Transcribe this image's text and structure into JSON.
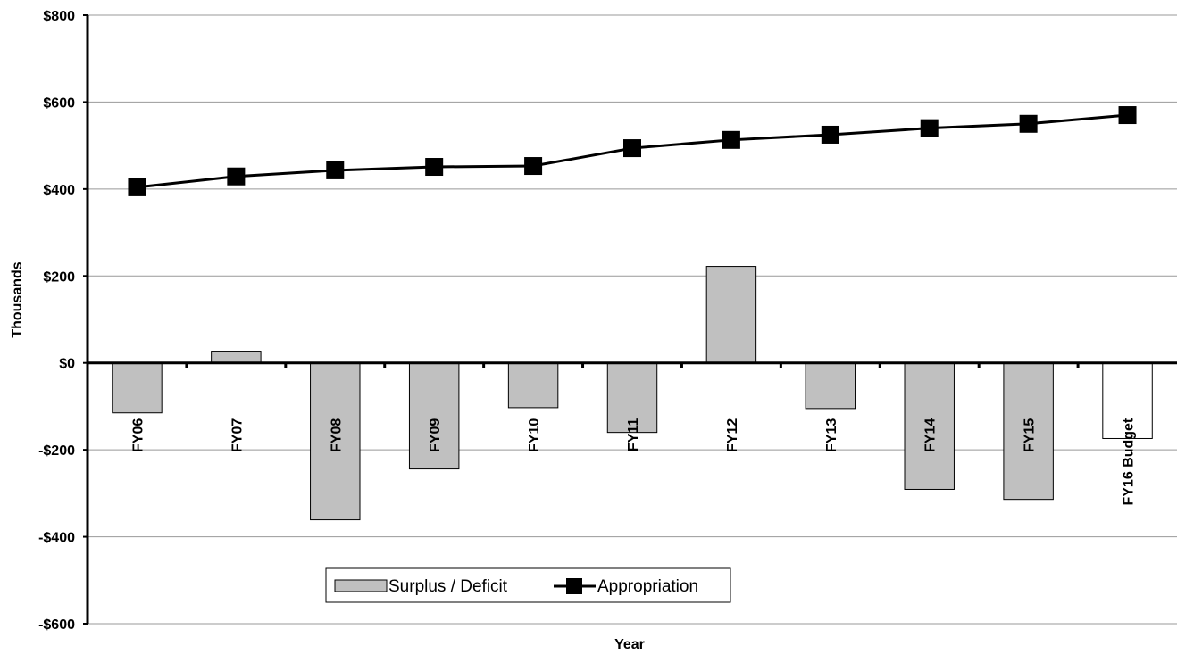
{
  "chart_data": {
    "type": "combo",
    "x_label": "Year",
    "y_label": "Thousands",
    "categories": [
      "FY06",
      "FY07",
      "FY08",
      "FY09",
      "FY10",
      "FY11",
      "FY12",
      "FY13",
      "FY14",
      "FY15",
      "FY16 Budget"
    ],
    "series": [
      {
        "name": "Surplus / Deficit",
        "type": "bar",
        "colors": [
          "#c0c0c0",
          "#c0c0c0",
          "#c0c0c0",
          "#c0c0c0",
          "#c0c0c0",
          "#c0c0c0",
          "#c0c0c0",
          "#c0c0c0",
          "#c0c0c0",
          "#c0c0c0",
          "#ffffff"
        ],
        "values": [
          -115,
          27,
          -361,
          -244,
          -103,
          -160,
          222,
          -105,
          -291,
          -314,
          -174
        ]
      },
      {
        "name": "Appropriation",
        "type": "line",
        "color": "#000000",
        "values": [
          404,
          429,
          443,
          451,
          453,
          494,
          513,
          525,
          540,
          550,
          570
        ]
      }
    ],
    "ylim": [
      -600,
      800
    ],
    "yticks": [
      {
        "value": -600,
        "label": "-$600"
      },
      {
        "value": -400,
        "label": "-$400"
      },
      {
        "value": -200,
        "label": "-$200"
      },
      {
        "value": 0,
        "label": "$0"
      },
      {
        "value": 200,
        "label": "$200"
      },
      {
        "value": 400,
        "label": "$400"
      },
      {
        "value": 600,
        "label": "$600"
      },
      {
        "value": 800,
        "label": "$800"
      }
    ],
    "grid": true,
    "legend": "bottom"
  }
}
